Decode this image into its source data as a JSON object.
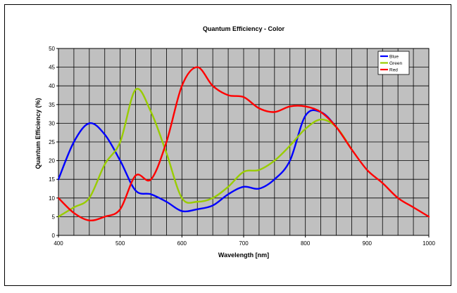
{
  "chart_data": {
    "type": "line",
    "title": "Quantum Efficiency - Color",
    "xlabel": "Wavelength [nm]",
    "ylabel": "Quantum Efficiency (%)",
    "xlim": [
      400,
      1000
    ],
    "ylim": [
      0,
      50
    ],
    "x_ticks": [
      400,
      500,
      600,
      700,
      800,
      900,
      1000
    ],
    "y_ticks": [
      0,
      5,
      10,
      15,
      20,
      25,
      30,
      35,
      40,
      45,
      50
    ],
    "x_tick_labels": [
      "400",
      "500",
      "600",
      "700",
      "800",
      "900",
      "1000"
    ],
    "y_tick_labels": [
      "0",
      "5",
      "10",
      "15",
      "20",
      "25",
      "30",
      "35",
      "40",
      "45",
      "50"
    ],
    "x_grid_step": 25,
    "y_grid_step": 5,
    "plot_background": "#c0c0c0",
    "grid": true,
    "legend_position": "top-right",
    "series": [
      {
        "name": "Blue",
        "color": "#0000ff",
        "points": [
          [
            400,
            15
          ],
          [
            425,
            25
          ],
          [
            450,
            30
          ],
          [
            475,
            27
          ],
          [
            500,
            20
          ],
          [
            525,
            12
          ],
          [
            550,
            11
          ],
          [
            575,
            9
          ],
          [
            600,
            6.5
          ],
          [
            625,
            7
          ],
          [
            650,
            8
          ],
          [
            675,
            11
          ],
          [
            700,
            13
          ],
          [
            725,
            12.5
          ],
          [
            750,
            15
          ],
          [
            775,
            20
          ],
          [
            800,
            32
          ],
          [
            825,
            33
          ],
          [
            850,
            29
          ],
          [
            875,
            23
          ]
        ]
      },
      {
        "name": "Green",
        "color": "#99cc00",
        "points": [
          [
            400,
            5
          ],
          [
            425,
            7.5
          ],
          [
            450,
            10
          ],
          [
            475,
            19
          ],
          [
            500,
            25
          ],
          [
            525,
            39
          ],
          [
            550,
            33
          ],
          [
            575,
            22
          ],
          [
            600,
            10
          ],
          [
            625,
            9
          ],
          [
            650,
            10
          ],
          [
            675,
            13
          ],
          [
            700,
            17
          ],
          [
            725,
            17.5
          ],
          [
            750,
            20
          ],
          [
            775,
            24
          ],
          [
            800,
            28.5
          ],
          [
            825,
            31
          ],
          [
            850,
            29
          ],
          [
            875,
            23
          ]
        ]
      },
      {
        "name": "Red",
        "color": "#ff0000",
        "points": [
          [
            400,
            10
          ],
          [
            425,
            6
          ],
          [
            450,
            4
          ],
          [
            475,
            5
          ],
          [
            500,
            7
          ],
          [
            525,
            16
          ],
          [
            550,
            15
          ],
          [
            575,
            25
          ],
          [
            600,
            40
          ],
          [
            625,
            45
          ],
          [
            650,
            40
          ],
          [
            675,
            37.5
          ],
          [
            700,
            37
          ],
          [
            725,
            34
          ],
          [
            750,
            33
          ],
          [
            775,
            34.5
          ],
          [
            800,
            34.5
          ],
          [
            825,
            33
          ],
          [
            850,
            29
          ],
          [
            875,
            23
          ],
          [
            900,
            17.5
          ],
          [
            925,
            14
          ],
          [
            950,
            10
          ],
          [
            975,
            7.5
          ],
          [
            1000,
            5
          ]
        ]
      }
    ]
  }
}
